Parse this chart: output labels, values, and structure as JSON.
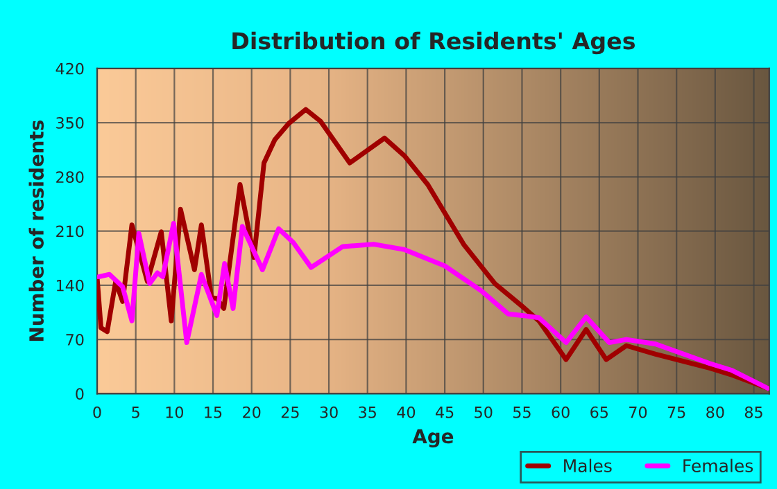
{
  "chart_data": {
    "type": "line",
    "title": "Distribution of Residents' Ages",
    "xlabel": "Age",
    "ylabel": "Number of residents",
    "xlim": [
      0,
      87
    ],
    "xticks": [
      0,
      5,
      10,
      15,
      20,
      25,
      30,
      35,
      40,
      45,
      50,
      55,
      60,
      65,
      70,
      75,
      80,
      85
    ],
    "ylim": [
      0,
      420
    ],
    "yticks": [
      0,
      70,
      140,
      210,
      280,
      350,
      420
    ],
    "grid": true,
    "legend": "bottom right",
    "line_style": "solid",
    "series": [
      {
        "name": "Males",
        "color": "#a00000",
        "x": [
          0,
          0.5,
          1.3,
          2.4,
          3.3,
          4.5,
          6.5,
          8.3,
          9.6,
          10.8,
          12.6,
          13.5,
          14.8,
          15.5,
          16.4,
          18.5,
          20.3,
          21.6,
          23,
          24.8,
          27,
          28.9,
          32.7,
          37.2,
          39.8,
          42.8,
          47.5,
          51.5,
          55,
          57.2,
          60.7,
          63.3,
          65.9,
          68.5,
          72.3,
          79.3,
          82.2,
          86.8
        ],
        "values": [
          150,
          85,
          80,
          145,
          119,
          218,
          145,
          209,
          94,
          238,
          160,
          218,
          124,
          123,
          110,
          270,
          176,
          298,
          328,
          349,
          367,
          352,
          298,
          330,
          307,
          270,
          192,
          142,
          113,
          94,
          44,
          83,
          44,
          62,
          51,
          33,
          24,
          7
        ]
      },
      {
        "name": "Females",
        "color": "#ff00ff",
        "x": [
          0.2,
          1.6,
          3.3,
          4.5,
          5.4,
          6.8,
          7.8,
          8.5,
          9.9,
          11.6,
          13.5,
          15.5,
          16.5,
          17.6,
          18.8,
          21.4,
          23.5,
          25.4,
          27.7,
          31.8,
          35.8,
          39.8,
          45,
          49.7,
          53.2,
          55,
          57.2,
          60.7,
          63.3,
          66.3,
          68.5,
          72.3,
          79.3,
          82.2,
          86.8
        ],
        "values": [
          151,
          154,
          138,
          94,
          207,
          142,
          156,
          151,
          220,
          66,
          154,
          101,
          168,
          110,
          216,
          160,
          213,
          195,
          163,
          190,
          193,
          186,
          165,
          133,
          103,
          101,
          98,
          66,
          99,
          66,
          70,
          64,
          39,
          30,
          7
        ]
      }
    ]
  }
}
